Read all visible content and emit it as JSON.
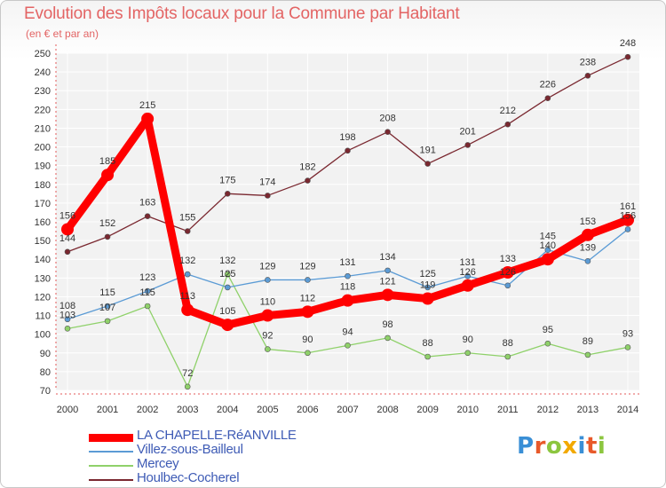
{
  "chart_data": {
    "type": "line",
    "title": "Evolution des Impôts locaux pour la Commune par Habitant",
    "subtitle": "(en € et par an)",
    "x": [
      "2000",
      "2001",
      "2002",
      "2003",
      "2004",
      "2005",
      "2006",
      "2007",
      "2008",
      "2009",
      "2010",
      "2011",
      "2012",
      "2013",
      "2014"
    ],
    "ylim": [
      70,
      250
    ],
    "yticks": [
      70,
      80,
      90,
      100,
      110,
      120,
      130,
      140,
      150,
      160,
      170,
      180,
      190,
      200,
      210,
      220,
      230,
      240,
      250
    ],
    "grid": true,
    "legend_position": "bottom-left",
    "series": [
      {
        "name": "LA CHAPELLE-RéANVILLE",
        "color": "#ff0000",
        "values": [
          156,
          185,
          215,
          113,
          105,
          110,
          112,
          118,
          121,
          119,
          126,
          133,
          140,
          153,
          161
        ],
        "labels": [
          "156",
          "185",
          "215",
          "113",
          "105",
          "110",
          "112",
          "118",
          "121",
          "119",
          "126",
          "133",
          "140",
          "153",
          "161"
        ]
      },
      {
        "name": "Villez-sous-Bailleul",
        "color": "#5b9bd5",
        "values": [
          108,
          115,
          123,
          132,
          125,
          129,
          129,
          131,
          134,
          125,
          131,
          126,
          145,
          139,
          156
        ],
        "labels": [
          "108",
          "115",
          "123",
          "132",
          "125",
          "129",
          "129",
          "131",
          "134",
          "125",
          "131",
          "126",
          "145",
          "139",
          "156"
        ]
      },
      {
        "name": "Mercey",
        "color": "#8fd16a",
        "values": [
          103,
          107,
          115,
          72,
          132,
          92,
          90,
          94,
          98,
          88,
          90,
          88,
          95,
          89,
          93
        ],
        "labels": [
          "103",
          "107",
          "115",
          "72",
          "132",
          "92",
          "90",
          "94",
          "98",
          "88",
          "90",
          "88",
          "95",
          "89",
          "93"
        ]
      },
      {
        "name": "Houlbec-Cocherel",
        "color": "#7a2830",
        "values": [
          144,
          152,
          163,
          155,
          175,
          174,
          182,
          198,
          208,
          191,
          201,
          212,
          226,
          238,
          248
        ],
        "labels": [
          "144",
          "152",
          "163",
          "155",
          "175",
          "174",
          "182",
          "198",
          "208",
          "191",
          "201",
          "212",
          "226",
          "238",
          "248"
        ]
      }
    ]
  },
  "logo": {
    "text": "Proxiti",
    "colors": [
      "#3a8fd6",
      "#e8592a",
      "#8cc63f",
      "#f2a900",
      "#3a8fd6",
      "#e8592a",
      "#8cc63f"
    ]
  }
}
